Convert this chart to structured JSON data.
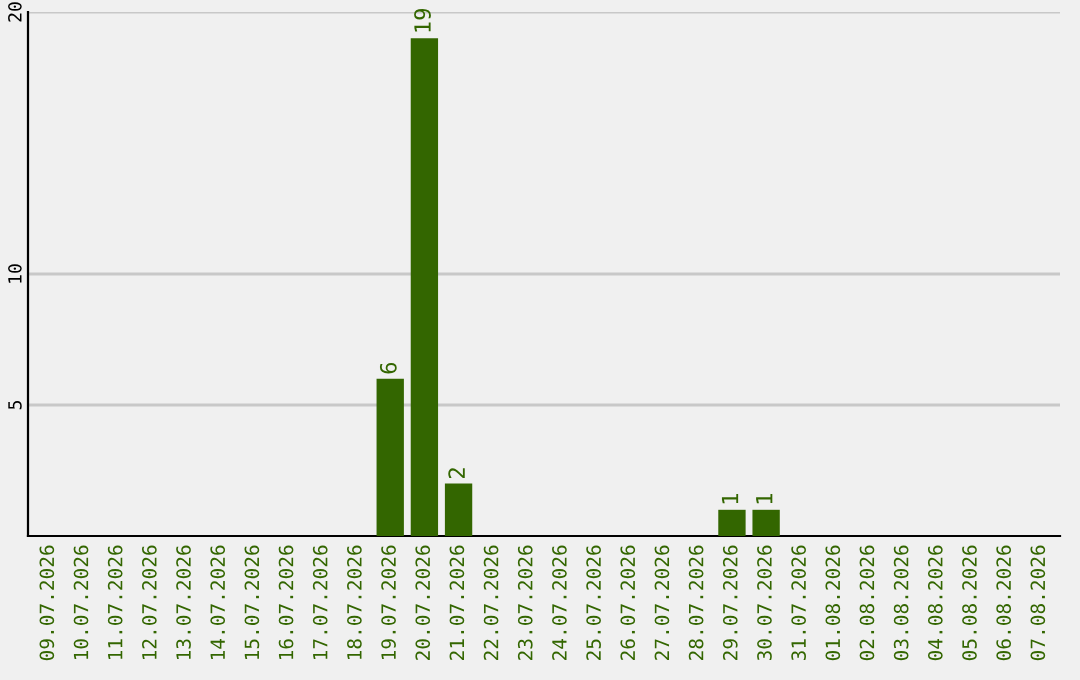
{
  "chart_data": {
    "type": "bar",
    "categories": [
      "09.07.2026",
      "10.07.2026",
      "11.07.2026",
      "12.07.2026",
      "13.07.2026",
      "14.07.2026",
      "15.07.2026",
      "16.07.2026",
      "17.07.2026",
      "18.07.2026",
      "19.07.2026",
      "20.07.2026",
      "21.07.2026",
      "22.07.2026",
      "23.07.2026",
      "24.07.2026",
      "25.07.2026",
      "26.07.2026",
      "27.07.2026",
      "28.07.2026",
      "29.07.2026",
      "30.07.2026",
      "31.07.2026",
      "01.08.2026",
      "02.08.2026",
      "03.08.2026",
      "04.08.2026",
      "05.08.2026",
      "06.08.2026",
      "07.08.2026"
    ],
    "values": [
      0,
      0,
      0,
      0,
      0,
      0,
      0,
      0,
      0,
      0,
      6,
      19,
      2,
      0,
      0,
      0,
      0,
      0,
      0,
      0,
      1,
      1,
      0,
      0,
      0,
      0,
      0,
      0,
      0,
      0
    ],
    "value_labels": [
      null,
      null,
      null,
      null,
      null,
      null,
      null,
      null,
      null,
      null,
      "6",
      "19",
      "2",
      null,
      null,
      null,
      null,
      null,
      null,
      null,
      "1",
      "1",
      null,
      null,
      null,
      null,
      null,
      null,
      null,
      null
    ],
    "color": "#336600",
    "ylim": [
      0,
      20
    ],
    "yticks": [
      5,
      10,
      20
    ],
    "grid": "y"
  }
}
